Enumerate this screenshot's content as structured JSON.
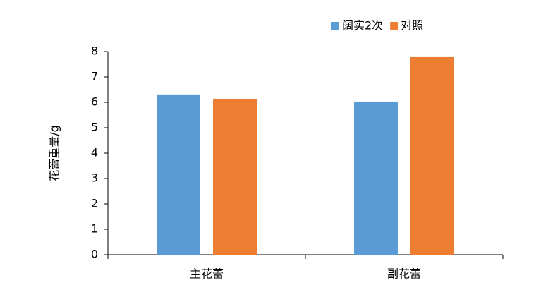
{
  "chart_data": {
    "type": "bar",
    "y_label": "花蕾重量/g",
    "categories": [
      "主花蕾",
      "副花蕾"
    ],
    "series": [
      {
        "name": "阔实2次",
        "color": "#5b9bd5",
        "values": [
          6.31,
          6.03
        ]
      },
      {
        "name": "对照",
        "color": "#ed7d31",
        "values": [
          6.14,
          7.78
        ]
      }
    ],
    "ylim": [
      0,
      8
    ],
    "yticks": [
      0,
      1,
      2,
      3,
      4,
      5,
      6,
      7,
      8
    ],
    "grid": false,
    "legend": "top-right"
  }
}
